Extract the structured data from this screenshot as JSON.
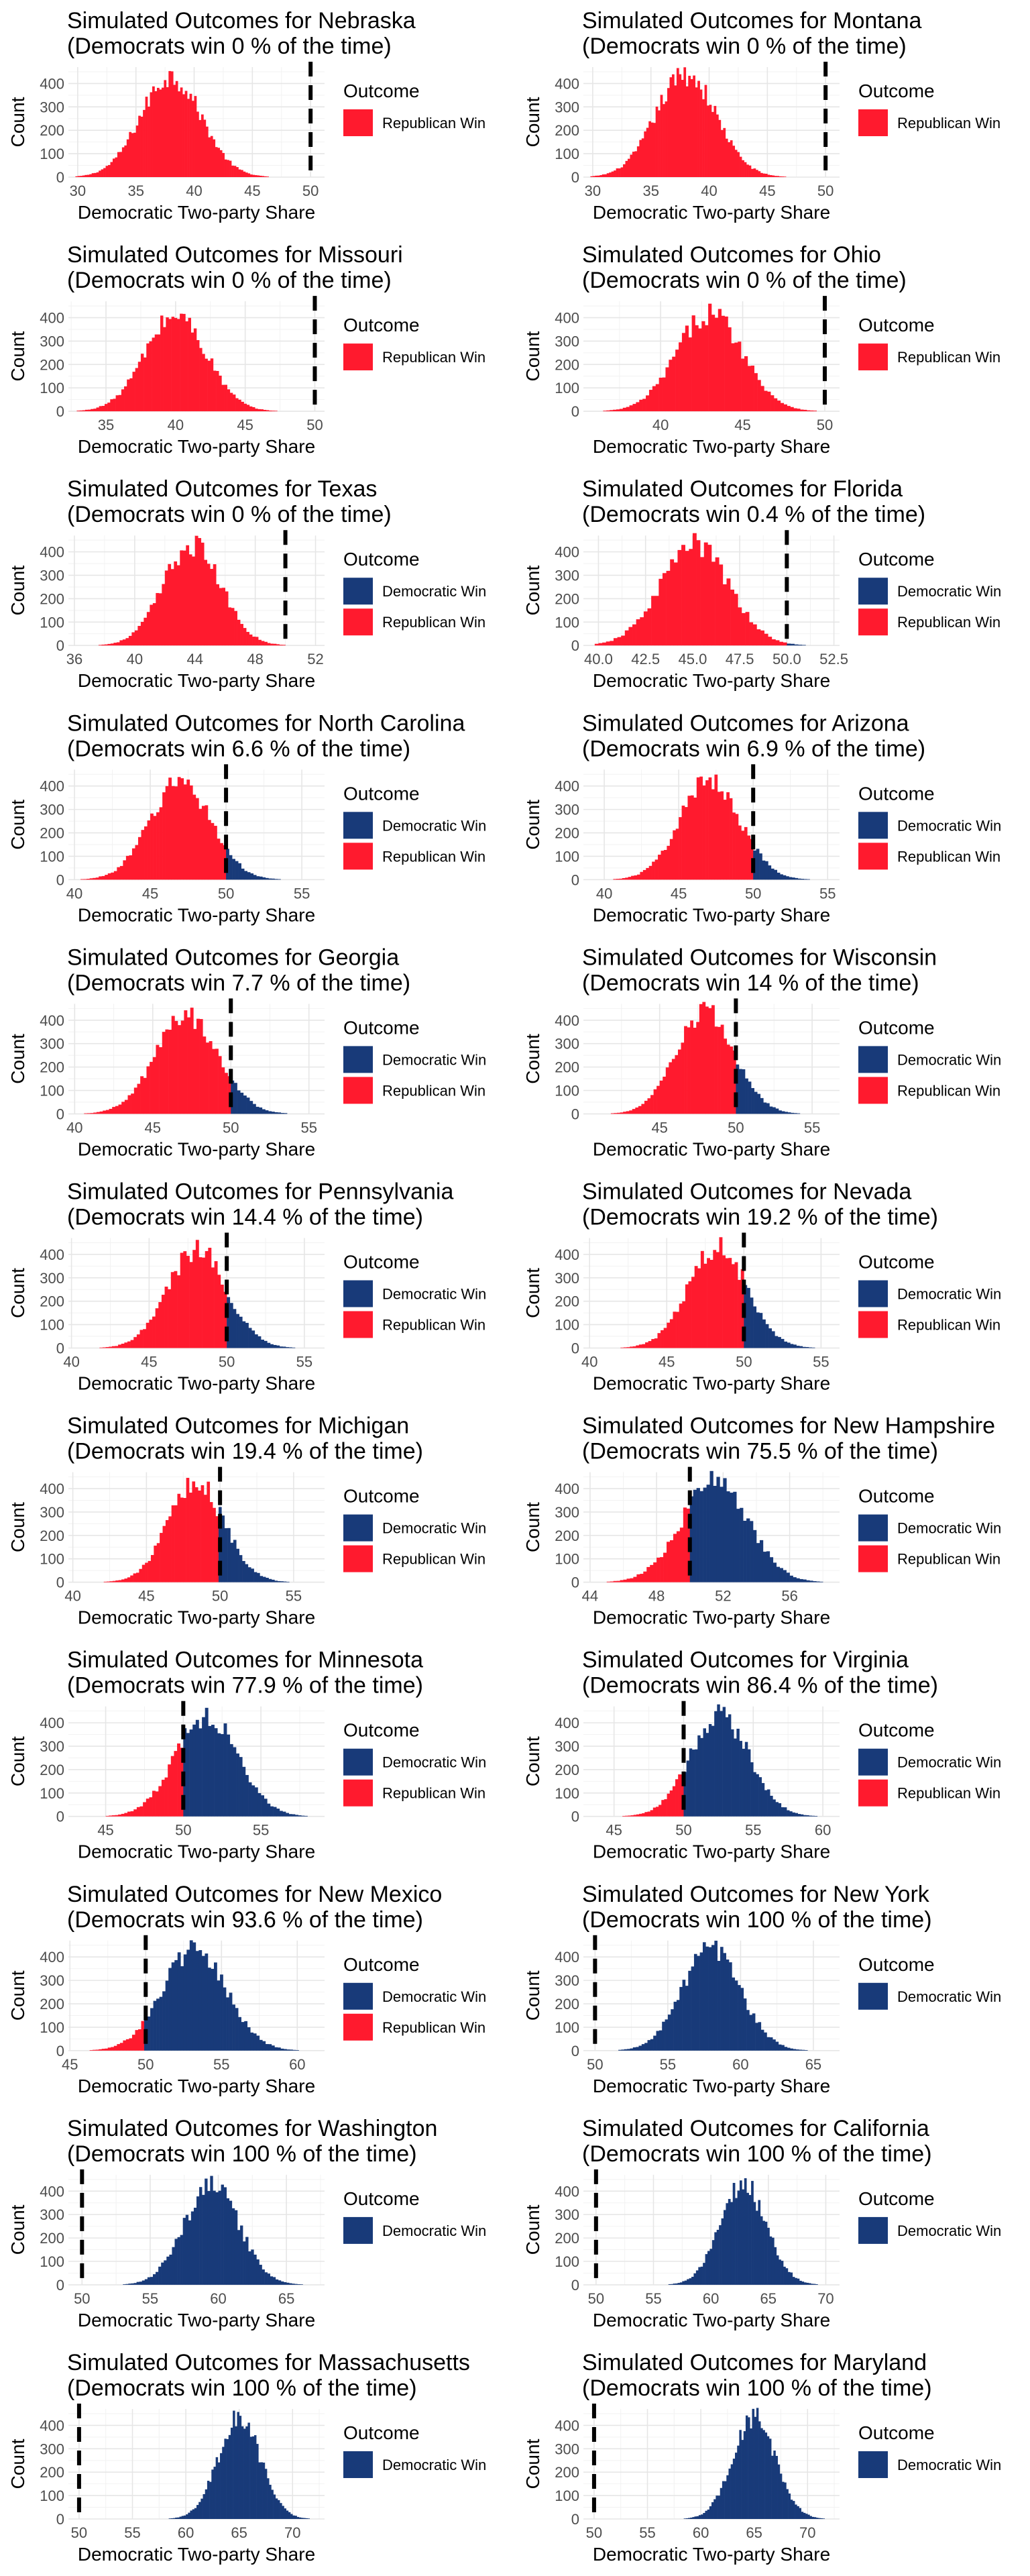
{
  "figure": {
    "colors": {
      "democratic": "#183A79",
      "republican": "#FF1A2E"
    },
    "threshold": 50,
    "legend_title": "Outcome",
    "legend_labels": {
      "democratic": "Democratic Win",
      "republican": "Republican Win"
    }
  },
  "chart_data": [
    {
      "type": "bar",
      "title": "Simulated Outcomes for Nebraska",
      "subtitle": "(Democrats win 0 % of the time)",
      "xlabel": "Democratic Two-party Share",
      "ylabel": "Count",
      "xlim": [
        29.2,
        51.2
      ],
      "xticks": [
        30,
        35,
        40,
        45,
        50
      ],
      "ylim": [
        0,
        470
      ],
      "yticks": [
        0,
        100,
        200,
        300,
        400
      ],
      "distribution": {
        "mean": 38.0,
        "sd": 2.6,
        "peak": 430
      },
      "dem_pct": 0,
      "legend": [
        "Republican Win"
      ]
    },
    {
      "type": "bar",
      "title": "Simulated Outcomes for Montana",
      "subtitle": "(Democrats win 0 % of the time)",
      "xlabel": "Democratic Two-party Share",
      "ylabel": "Count",
      "xlim": [
        29.2,
        51.2
      ],
      "xticks": [
        30,
        35,
        40,
        45,
        50
      ],
      "ylim": [
        0,
        470
      ],
      "yticks": [
        0,
        100,
        200,
        300,
        400
      ],
      "distribution": {
        "mean": 38.0,
        "sd": 2.6,
        "peak": 440
      },
      "dem_pct": 0,
      "legend": [
        "Republican Win"
      ]
    },
    {
      "type": "bar",
      "title": "Simulated Outcomes for Missouri",
      "subtitle": "(Democrats win 0 % of the time)",
      "xlabel": "Democratic Two-party Share",
      "ylabel": "Count",
      "xlim": [
        32.3,
        50.7
      ],
      "xticks": [
        35,
        40,
        45,
        50
      ],
      "ylim": [
        0,
        470
      ],
      "yticks": [
        0,
        100,
        200,
        300,
        400
      ],
      "distribution": {
        "mean": 40.0,
        "sd": 2.2,
        "peak": 410
      },
      "dem_pct": 0,
      "legend": [
        "Republican Win"
      ]
    },
    {
      "type": "bar",
      "title": "Simulated Outcomes for Ohio",
      "subtitle": "(Democrats win 0 % of the time)",
      "xlabel": "Democratic Two-party Share",
      "ylabel": "Count",
      "xlim": [
        35.3,
        50.9
      ],
      "xticks": [
        40,
        45,
        50
      ],
      "ylim": [
        0,
        470
      ],
      "yticks": [
        0,
        100,
        200,
        300,
        400
      ],
      "distribution": {
        "mean": 43.0,
        "sd": 2.0,
        "peak": 420
      },
      "dem_pct": 0,
      "legend": [
        "Republican Win"
      ]
    },
    {
      "type": "bar",
      "title": "Simulated Outcomes for Texas",
      "subtitle": "(Democrats win 0 % of the time)",
      "xlabel": "Democratic Two-party Share",
      "ylabel": "Count",
      "xlim": [
        35.6,
        52.6
      ],
      "xticks": [
        36,
        40,
        44,
        48,
        52
      ],
      "ylim": [
        0,
        470
      ],
      "yticks": [
        0,
        100,
        200,
        300,
        400
      ],
      "distribution": {
        "mean": 43.8,
        "sd": 1.9,
        "peak": 430
      },
      "dem_pct": 0,
      "legend": [
        "Democratic Win",
        "Republican Win"
      ]
    },
    {
      "type": "bar",
      "title": "Simulated Outcomes for Florida",
      "subtitle": "(Democrats win 0.4 % of the time)",
      "xlabel": "Democratic Two-party Share",
      "ylabel": "Count",
      "xlim": [
        39.2,
        52.8
      ],
      "xticks": [
        40.0,
        42.5,
        45.0,
        47.5,
        50.0,
        52.5
      ],
      "ylim": [
        0,
        470
      ],
      "yticks": [
        0,
        100,
        200,
        300,
        400
      ],
      "distribution": {
        "mean": 45.1,
        "sd": 1.8,
        "peak": 430
      },
      "dem_pct": 0.4,
      "legend": [
        "Democratic Win",
        "Republican Win"
      ]
    },
    {
      "type": "bar",
      "title": "Simulated Outcomes for North Carolina",
      "subtitle": "(Democrats win 6.6 % of the time)",
      "xlabel": "Democratic Two-party Share",
      "ylabel": "Count",
      "xlim": [
        39.6,
        56.5
      ],
      "xticks": [
        40,
        45,
        50,
        55
      ],
      "ylim": [
        0,
        470
      ],
      "yticks": [
        0,
        100,
        200,
        300,
        400
      ],
      "distribution": {
        "mean": 47.0,
        "sd": 2.0,
        "peak": 420
      },
      "dem_pct": 6.6,
      "legend": [
        "Democratic Win",
        "Republican Win"
      ]
    },
    {
      "type": "bar",
      "title": "Simulated Outcomes for Arizona",
      "subtitle": "(Democrats win 6.9 % of the time)",
      "xlabel": "Democratic Two-party Share",
      "ylabel": "Count",
      "xlim": [
        38.6,
        55.8
      ],
      "xticks": [
        40,
        45,
        50,
        55
      ],
      "ylim": [
        0,
        470
      ],
      "yticks": [
        0,
        100,
        200,
        300,
        400
      ],
      "distribution": {
        "mean": 47.1,
        "sd": 2.0,
        "peak": 430
      },
      "dem_pct": 6.9,
      "legend": [
        "Democratic Win",
        "Republican Win"
      ]
    },
    {
      "type": "bar",
      "title": "Simulated Outcomes for Georgia",
      "subtitle": "(Democrats win 7.7 % of the time)",
      "xlabel": "Democratic Two-party Share",
      "ylabel": "Count",
      "xlim": [
        39.6,
        56.0
      ],
      "xticks": [
        40,
        45,
        50,
        55
      ],
      "ylim": [
        0,
        470
      ],
      "yticks": [
        0,
        100,
        200,
        300,
        400
      ],
      "distribution": {
        "mean": 47.2,
        "sd": 2.0,
        "peak": 420
      },
      "dem_pct": 7.7,
      "legend": [
        "Democratic Win",
        "Republican Win"
      ]
    },
    {
      "type": "bar",
      "title": "Simulated Outcomes for Wisconsin",
      "subtitle": "(Democrats win 14 % of the time)",
      "xlabel": "Democratic Two-party Share",
      "ylabel": "Count",
      "xlim": [
        40.0,
        56.8
      ],
      "xticks": [
        45,
        50,
        55
      ],
      "ylim": [
        0,
        470
      ],
      "yticks": [
        0,
        100,
        200,
        300,
        400
      ],
      "distribution": {
        "mean": 48.0,
        "sd": 1.9,
        "peak": 430
      },
      "dem_pct": 14,
      "legend": [
        "Democratic Win",
        "Republican Win"
      ]
    },
    {
      "type": "bar",
      "title": "Simulated Outcomes for Pennsylvania",
      "subtitle": "(Democrats win 14.4 % of the time)",
      "xlabel": "Democratic Two-party Share",
      "ylabel": "Count",
      "xlim": [
        39.8,
        56.3
      ],
      "xticks": [
        40,
        45,
        50,
        55
      ],
      "ylim": [
        0,
        470
      ],
      "yticks": [
        0,
        100,
        200,
        300,
        400
      ],
      "distribution": {
        "mean": 48.1,
        "sd": 1.9,
        "peak": 420
      },
      "dem_pct": 14.4,
      "legend": [
        "Democratic Win",
        "Republican Win"
      ]
    },
    {
      "type": "bar",
      "title": "Simulated Outcomes for Nevada",
      "subtitle": "(Democrats win 19.2 % of the time)",
      "xlabel": "Democratic Two-party Share",
      "ylabel": "Count",
      "xlim": [
        39.6,
        56.2
      ],
      "xticks": [
        40,
        45,
        50,
        55
      ],
      "ylim": [
        0,
        470
      ],
      "yticks": [
        0,
        100,
        200,
        300,
        400
      ],
      "distribution": {
        "mean": 48.3,
        "sd": 1.9,
        "peak": 430
      },
      "dem_pct": 19.2,
      "legend": [
        "Democratic Win",
        "Republican Win"
      ]
    },
    {
      "type": "bar",
      "title": "Simulated Outcomes for Michigan",
      "subtitle": "(Democrats win 19.4 % of the time)",
      "xlabel": "Democratic Two-party Share",
      "ylabel": "Count",
      "xlim": [
        39.7,
        57.1
      ],
      "xticks": [
        40,
        45,
        50,
        55
      ],
      "ylim": [
        0,
        470
      ],
      "yticks": [
        0,
        100,
        200,
        300,
        400
      ],
      "distribution": {
        "mean": 48.4,
        "sd": 1.9,
        "peak": 420
      },
      "dem_pct": 19.4,
      "legend": [
        "Democratic Win",
        "Republican Win"
      ]
    },
    {
      "type": "bar",
      "title": "Simulated Outcomes for New Hampshire",
      "subtitle": "(Democrats win 75.5 % of the time)",
      "xlabel": "Democratic Two-party Share",
      "ylabel": "Count",
      "xlim": [
        43.6,
        59.0
      ],
      "xticks": [
        44,
        48,
        52,
        56
      ],
      "ylim": [
        0,
        470
      ],
      "yticks": [
        0,
        100,
        200,
        300,
        400
      ],
      "distribution": {
        "mean": 51.5,
        "sd": 2.0,
        "peak": 430
      },
      "dem_pct": 75.5,
      "legend": [
        "Democratic Win",
        "Republican Win"
      ]
    },
    {
      "type": "bar",
      "title": "Simulated Outcomes for Minnesota",
      "subtitle": "(Democrats win 77.9 % of the time)",
      "xlabel": "Democratic Two-party Share",
      "ylabel": "Count",
      "xlim": [
        42.6,
        59.1
      ],
      "xticks": [
        45,
        50,
        55
      ],
      "ylim": [
        0,
        470
      ],
      "yticks": [
        0,
        100,
        200,
        300,
        400
      ],
      "distribution": {
        "mean": 51.5,
        "sd": 2.0,
        "peak": 430
      },
      "dem_pct": 77.9,
      "legend": [
        "Democratic Win",
        "Republican Win"
      ]
    },
    {
      "type": "bar",
      "title": "Simulated Outcomes for Virginia",
      "subtitle": "(Democrats win 86.4 % of the time)",
      "xlabel": "Democratic Two-party Share",
      "ylabel": "Count",
      "xlim": [
        42.8,
        61.2
      ],
      "xticks": [
        45,
        50,
        55,
        60
      ],
      "ylim": [
        0,
        470
      ],
      "yticks": [
        0,
        100,
        200,
        300,
        400
      ],
      "distribution": {
        "mean": 52.6,
        "sd": 2.1,
        "peak": 430
      },
      "dem_pct": 86.4,
      "legend": [
        "Democratic Win",
        "Republican Win"
      ]
    },
    {
      "type": "bar",
      "title": "Simulated Outcomes for New Mexico",
      "subtitle": "(Democrats win 93.6 % of the time)",
      "xlabel": "Democratic Two-party Share",
      "ylabel": "Count",
      "xlim": [
        44.9,
        61.8
      ],
      "xticks": [
        45,
        50,
        55,
        60
      ],
      "ylim": [
        0,
        470
      ],
      "yticks": [
        0,
        100,
        200,
        300,
        400
      ],
      "distribution": {
        "mean": 53.2,
        "sd": 2.1,
        "peak": 430
      },
      "dem_pct": 93.6,
      "legend": [
        "Democratic Win",
        "Republican Win"
      ]
    },
    {
      "type": "bar",
      "title": "Simulated Outcomes for New York",
      "subtitle": "(Democrats win 100 % of the time)",
      "xlabel": "Democratic Two-party Share",
      "ylabel": "Count",
      "xlim": [
        49.2,
        66.8
      ],
      "xticks": [
        50,
        55,
        60,
        65
      ],
      "ylim": [
        0,
        470
      ],
      "yticks": [
        0,
        100,
        200,
        300,
        400
      ],
      "distribution": {
        "mean": 58.0,
        "sd": 2.0,
        "peak": 430
      },
      "dem_pct": 100,
      "legend": [
        "Democratic Win"
      ]
    },
    {
      "type": "bar",
      "title": "Simulated Outcomes for Washington",
      "subtitle": "(Democrats win 100 % of the time)",
      "xlabel": "Democratic Two-party Share",
      "ylabel": "Count",
      "xlim": [
        49.0,
        67.8
      ],
      "xticks": [
        50,
        55,
        60,
        65
      ],
      "ylim": [
        0,
        470
      ],
      "yticks": [
        0,
        100,
        200,
        300,
        400
      ],
      "distribution": {
        "mean": 59.5,
        "sd": 2.0,
        "peak": 430
      },
      "dem_pct": 100,
      "legend": [
        "Democratic Win"
      ]
    },
    {
      "type": "bar",
      "title": "Simulated Outcomes for California",
      "subtitle": "(Democrats win 100 % of the time)",
      "xlabel": "Democratic Two-party Share",
      "ylabel": "Count",
      "xlim": [
        48.9,
        71.2
      ],
      "xticks": [
        50,
        55,
        60,
        65,
        70
      ],
      "ylim": [
        0,
        470
      ],
      "yticks": [
        0,
        100,
        200,
        300,
        400
      ],
      "distribution": {
        "mean": 62.8,
        "sd": 2.0,
        "peak": 430
      },
      "dem_pct": 100,
      "legend": [
        "Democratic Win"
      ]
    },
    {
      "type": "bar",
      "title": "Simulated Outcomes for Massachusetts",
      "subtitle": "(Democrats win 100 % of the time)",
      "xlabel": "Democratic Two-party Share",
      "ylabel": "Count",
      "xlim": [
        49.0,
        73.0
      ],
      "xticks": [
        50,
        55,
        60,
        65,
        70
      ],
      "ylim": [
        0,
        470
      ],
      "yticks": [
        0,
        100,
        200,
        300,
        400
      ],
      "distribution": {
        "mean": 65.0,
        "sd": 2.0,
        "peak": 430
      },
      "dem_pct": 100,
      "legend": [
        "Democratic Win"
      ]
    },
    {
      "type": "bar",
      "title": "Simulated Outcomes for Maryland",
      "subtitle": "(Democrats win 100 % of the time)",
      "xlabel": "Democratic Two-party Share",
      "ylabel": "Count",
      "xlim": [
        49.0,
        73.0
      ],
      "xticks": [
        50,
        55,
        60,
        65,
        70
      ],
      "ylim": [
        0,
        470
      ],
      "yticks": [
        0,
        100,
        200,
        300,
        400
      ],
      "distribution": {
        "mean": 65.0,
        "sd": 2.0,
        "peak": 430
      },
      "dem_pct": 100,
      "legend": [
        "Democratic Win"
      ]
    }
  ]
}
